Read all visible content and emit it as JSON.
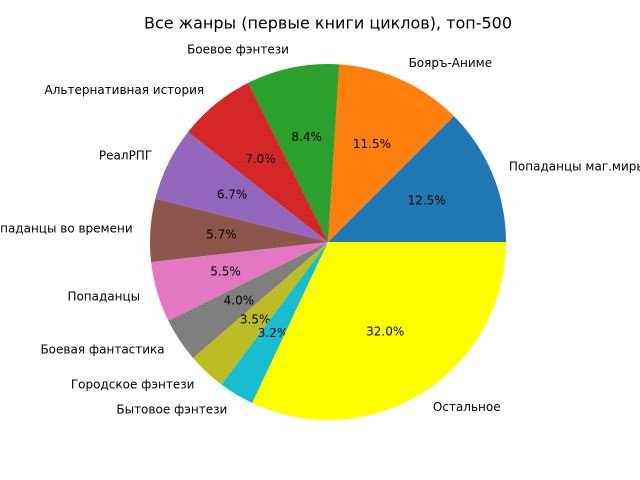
{
  "chart_data": {
    "type": "pie",
    "title": "Все жанры (первые книги циклов), топ-500",
    "categories": [
      "Попаданцы маг.миры",
      "Бояръ-Аниме",
      "Боевое фэнтези",
      "Альтернативная история",
      "РеалРПГ",
      "Попаданцы во времени",
      "Попаданцы",
      "Боевая фантастика",
      "Городское фэнтези",
      "Бытовое фэнтези",
      "Остальное"
    ],
    "values": [
      12.5,
      11.5,
      8.4,
      7.0,
      6.7,
      5.7,
      5.5,
      4.0,
      3.5,
      3.2,
      32.0
    ],
    "value_labels": [
      "12.5%",
      "11.5%",
      "8.4%",
      "7.0%",
      "6.7%",
      "5.7%",
      "5.5%",
      "4.0%",
      "3.5%",
      "3.2%",
      "32.0%"
    ],
    "colors": [
      "#1f77b4",
      "#ff7f0e",
      "#2ca02c",
      "#d62728",
      "#9467bd",
      "#8c564b",
      "#e377c2",
      "#7f7f7f",
      "#bcbd22",
      "#17becf",
      "#ffff00"
    ]
  }
}
